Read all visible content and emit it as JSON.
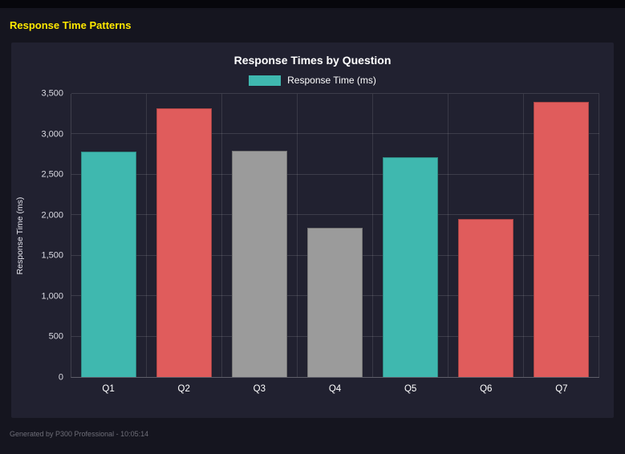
{
  "header": {
    "title": "Response Time Patterns"
  },
  "footer": {
    "text": "Generated by P300 Professional - 10:05:14"
  },
  "colors": {
    "header_yellow": "#ffe800",
    "teal": "#3fb8af",
    "red": "#e05c5c",
    "gray": "#9b9b9b",
    "panel_bg": "#212130",
    "page_bg": "#15151f"
  },
  "chart_data": {
    "type": "bar",
    "title": "Response Times by Question",
    "legend_label": "Response Time (ms)",
    "legend_color": "#3fb8af",
    "legend_position": "top",
    "xlabel": "",
    "ylabel": "Response Time (ms)",
    "categories": [
      "Q1",
      "Q2",
      "Q3",
      "Q4",
      "Q5",
      "Q6",
      "Q7"
    ],
    "values": [
      2790,
      3320,
      2800,
      1840,
      2720,
      1950,
      3400
    ],
    "bar_colors": [
      "#3fb8af",
      "#e05c5c",
      "#9b9b9b",
      "#9b9b9b",
      "#3fb8af",
      "#e05c5c",
      "#e05c5c"
    ],
    "ylim": [
      0,
      3500
    ],
    "ytick_step": 500,
    "grid": true
  }
}
